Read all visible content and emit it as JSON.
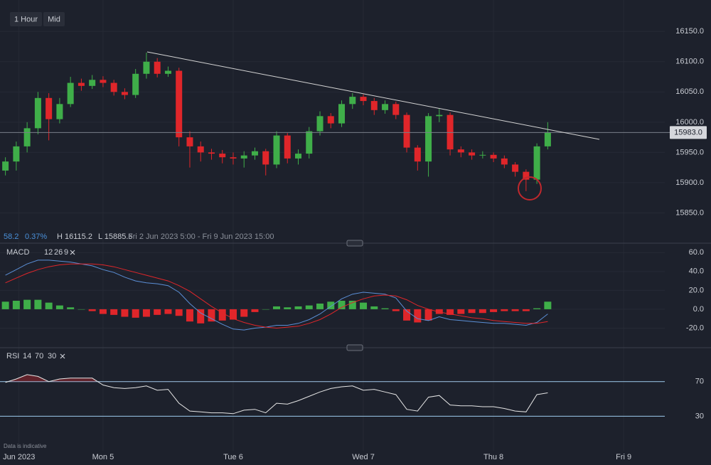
{
  "toolbar": {
    "interval": "1 Hour",
    "price_type": "Mid"
  },
  "info": {
    "change": "58.2",
    "change_pct": "0.37%",
    "high": "H 16115.2",
    "low": "L 15885.6",
    "range": "Fri 2 Jun 2023 5:00 - Fri 9 Jun 2023 15:00"
  },
  "footer": "Data is indicative",
  "chart_data": [
    {
      "type": "candlestick",
      "x": [
        -18,
        -16,
        -14,
        -12,
        -10,
        -8,
        -6,
        -4,
        -2,
        0,
        2,
        4,
        6,
        8,
        10,
        12,
        14,
        16,
        18,
        20,
        22,
        24,
        26,
        28,
        30,
        32,
        34,
        36,
        38,
        40,
        42,
        44,
        46,
        48,
        50,
        52,
        54,
        56,
        58,
        60,
        62,
        64,
        66,
        68,
        70,
        72,
        74,
        76,
        78,
        80,
        82
      ],
      "open": [
        15920,
        15935,
        15960,
        15990,
        16040,
        16005,
        16030,
        16065,
        16060,
        16070,
        16065,
        16050,
        16045,
        16080,
        16100,
        16080,
        16085,
        15975,
        15960,
        15950,
        15948,
        15942,
        15940,
        15945,
        15952,
        15930,
        15978,
        15940,
        15948,
        15985,
        16010,
        15998,
        16030,
        16042,
        16035,
        16020,
        16030,
        16012,
        15958,
        15935,
        16010,
        16012,
        15955,
        15950,
        15945,
        15946,
        15940,
        15930,
        15918,
        15905,
        15960
      ],
      "high": [
        15942,
        15968,
        16000,
        16050,
        16048,
        16040,
        16075,
        16072,
        16078,
        16076,
        16070,
        16056,
        16088,
        16115,
        16106,
        16092,
        16090,
        15985,
        15968,
        15956,
        15954,
        15950,
        15952,
        15958,
        15956,
        15985,
        15982,
        15955,
        15992,
        16018,
        16015,
        16036,
        16048,
        16046,
        16040,
        16036,
        16034,
        16016,
        15962,
        16015,
        16022,
        16016,
        15960,
        15955,
        15952,
        15950,
        15945,
        15934,
        15922,
        15965,
        16000
      ],
      "low": [
        15912,
        15920,
        15950,
        15980,
        15970,
        15998,
        16025,
        16052,
        16055,
        16058,
        16044,
        16038,
        16040,
        16072,
        16074,
        16075,
        15960,
        15925,
        15935,
        15938,
        15932,
        15930,
        15925,
        15938,
        15912,
        15924,
        15932,
        15930,
        15940,
        15978,
        15990,
        15992,
        16022,
        16028,
        16012,
        16014,
        16005,
        15950,
        15920,
        15910,
        16000,
        15945,
        15942,
        15938,
        15940,
        15934,
        15924,
        15910,
        15886,
        15898,
        15955
      ],
      "close": [
        15935,
        15960,
        15990,
        16040,
        16005,
        16030,
        16065,
        16060,
        16070,
        16065,
        16050,
        16045,
        16080,
        16100,
        16080,
        16085,
        15975,
        15960,
        15950,
        15948,
        15942,
        15940,
        15945,
        15952,
        15930,
        15978,
        15940,
        15948,
        15985,
        16010,
        15998,
        16030,
        16042,
        16035,
        16020,
        16030,
        16012,
        15958,
        15935,
        16010,
        16012,
        15955,
        15950,
        15945,
        15946,
        15940,
        15930,
        15918,
        15905,
        15960,
        15983
      ],
      "up_color": "#3fae49",
      "down_color": "#e0262a",
      "xlim": [
        -19,
        106.6
      ],
      "ylim": [
        15800,
        16202
      ],
      "yticks": [
        {
          "value": 16150,
          "label": "16150.0"
        },
        {
          "value": 16100,
          "label": "16100.0"
        },
        {
          "value": 16050,
          "label": "16050.0"
        },
        {
          "value": 16000,
          "label": "16000.0"
        },
        {
          "value": 15950,
          "label": "15950.0"
        },
        {
          "value": 15900,
          "label": "15900.0"
        },
        {
          "value": 15850,
          "label": "15850.0"
        }
      ],
      "last_price": {
        "value": 15983,
        "label": "15983.0"
      },
      "grid": true
    },
    {
      "type": "macd",
      "label_parts": [
        "MACD",
        "12",
        "26",
        "9"
      ],
      "x": [
        -18,
        -16,
        -14,
        -12,
        -10,
        -8,
        -6,
        -4,
        -2,
        0,
        2,
        4,
        6,
        8,
        10,
        12,
        14,
        16,
        18,
        20,
        22,
        24,
        26,
        28,
        30,
        32,
        34,
        36,
        38,
        40,
        42,
        44,
        46,
        48,
        50,
        52,
        54,
        56,
        58,
        60,
        62,
        64,
        66,
        68,
        70,
        72,
        74,
        76,
        78,
        80,
        82
      ],
      "series": [
        {
          "color": "#5b8fd6",
          "values": [
            36,
            42,
            48,
            52,
            52,
            51,
            50,
            48,
            46,
            42,
            39,
            34,
            30,
            28,
            27,
            25,
            18,
            6,
            -4,
            -10,
            -16,
            -21,
            -22,
            -20,
            -19,
            -17,
            -17,
            -15,
            -11,
            -5,
            3,
            11,
            16,
            18,
            17,
            16,
            12,
            -2,
            -10,
            -12,
            -8,
            -11,
            -12,
            -13,
            -14,
            -15,
            -15,
            -16,
            -17,
            -14,
            -5
          ]
        },
        {
          "color": "#e0262a",
          "values": [
            28,
            33,
            38,
            42,
            45,
            47,
            48,
            48,
            48,
            47,
            45,
            42,
            39,
            36,
            33,
            30,
            25,
            19,
            11,
            3,
            -4,
            -10,
            -14,
            -17,
            -19,
            -20,
            -19,
            -18,
            -15,
            -11,
            -5,
            2,
            7,
            11,
            14,
            15,
            14,
            10,
            4,
            0,
            -3,
            -5,
            -7,
            -9,
            -10,
            -12,
            -13,
            -14,
            -15,
            -15,
            -13
          ]
        }
      ],
      "histogram": {
        "values": [
          8,
          9,
          10,
          10,
          7,
          4,
          2,
          0,
          -2,
          -5,
          -6,
          -8,
          -9,
          -8,
          -6,
          -5,
          -7,
          -13,
          -15,
          -13,
          -12,
          -11,
          -8,
          -3,
          0,
          3,
          2,
          3,
          4,
          6,
          8,
          9,
          9,
          7,
          3,
          1,
          -2,
          -12,
          -14,
          -12,
          -5,
          -6,
          -5,
          -4,
          -4,
          -3,
          -2,
          -2,
          -2,
          1,
          8
        ],
        "positive_color": "#3fae49",
        "negative_color": "#e0262a"
      },
      "xlim": [
        -19,
        106.6
      ],
      "ylim": [
        -40,
        67
      ],
      "yticks": [
        {
          "value": 60,
          "label": "60.0"
        },
        {
          "value": 40,
          "label": "40.0"
        },
        {
          "value": 20,
          "label": "20.0"
        },
        {
          "value": 0,
          "label": "0.0"
        },
        {
          "value": -20,
          "label": "-20.0"
        }
      ],
      "grid": true
    },
    {
      "type": "rsi",
      "label_parts": [
        "RSI",
        "14",
        "70",
        "30"
      ],
      "x": [
        -18,
        -16,
        -14,
        -12,
        -10,
        -8,
        -6,
        -4,
        -2,
        0,
        2,
        4,
        6,
        8,
        10,
        12,
        14,
        16,
        18,
        20,
        22,
        24,
        26,
        28,
        30,
        32,
        34,
        36,
        38,
        40,
        42,
        44,
        46,
        48,
        50,
        52,
        54,
        56,
        58,
        60,
        62,
        64,
        66,
        68,
        70,
        72,
        74,
        76,
        78,
        80,
        82
      ],
      "values": [
        69,
        73,
        78,
        76,
        70,
        73,
        74,
        74,
        74,
        66,
        63,
        62,
        63,
        65,
        60,
        61,
        45,
        36,
        35,
        34,
        34,
        33,
        37,
        38,
        34,
        45,
        44,
        48,
        53,
        58,
        62,
        64,
        65,
        60,
        61,
        58,
        55,
        38,
        36,
        52,
        54,
        43,
        42,
        42,
        41,
        41,
        39,
        36,
        35,
        55,
        57
      ],
      "color": "#e6e6e6",
      "level_color": "#8fb8d8",
      "overbought_fill": "#e0262a",
      "levels": [
        70,
        30
      ],
      "xlim": [
        -19,
        106.6
      ],
      "ylim": [
        0,
        105
      ],
      "yticks": [
        70,
        30
      ],
      "xticks": [
        {
          "value": -15.5,
          "label": "Jun 2023"
        },
        {
          "value": 0,
          "label": "Mon 5"
        },
        {
          "value": 24,
          "label": "Tue 6"
        },
        {
          "value": 48,
          "label": "Wed 7"
        },
        {
          "value": 72,
          "label": "Thu 8"
        },
        {
          "value": 96,
          "label": "Fri 9"
        }
      ]
    }
  ]
}
